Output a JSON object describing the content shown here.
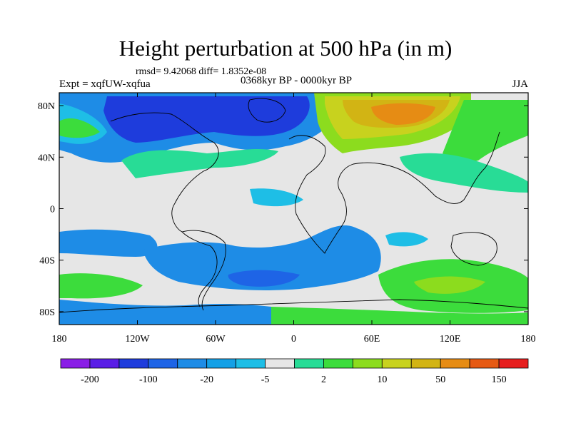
{
  "title": "Height perturbation at 500 hPa (in m)",
  "stats": "rmsd= 9.42068 diff= 1.8352e-08",
  "experiment": "Expt = xqfUW-xqfua",
  "period": "0368kyr BP - 0000kyr BP",
  "season": "JJA",
  "lat_ticks": [
    "80N",
    "40N",
    "0",
    "40S",
    "80S"
  ],
  "lat_values": [
    80,
    40,
    0,
    -40,
    -80
  ],
  "lon_ticks": [
    "180",
    "120W",
    "60W",
    "0",
    "60E",
    "120E",
    "180"
  ],
  "lon_values": [
    -180,
    -120,
    -60,
    0,
    60,
    120,
    180
  ],
  "colorbar": {
    "labels": [
      "-200",
      "-100",
      "-20",
      "-5",
      "2",
      "10",
      "50",
      "150"
    ],
    "colors": [
      "#8a1ee6",
      "#5a1ee6",
      "#1e3cdc",
      "#1e64e6",
      "#1e8ce6",
      "#14a0e6",
      "#1ebee6",
      "#e6e6e6",
      "#28dc96",
      "#3cdc3c",
      "#8cdc1e",
      "#c8d21e",
      "#d2b414",
      "#e68c14",
      "#e65a14",
      "#e61e1e"
    ]
  },
  "colors": {
    "strong_negative": "#1e3cdc",
    "negative": "#1e8ce6",
    "weak_negative": "#1ebee6",
    "neutral": "#e6e6e6",
    "weak_positive": "#28dc96",
    "positive": "#3cdc3c",
    "strong_positive": "#8cdc1e",
    "high_positive": "#e68c14"
  }
}
